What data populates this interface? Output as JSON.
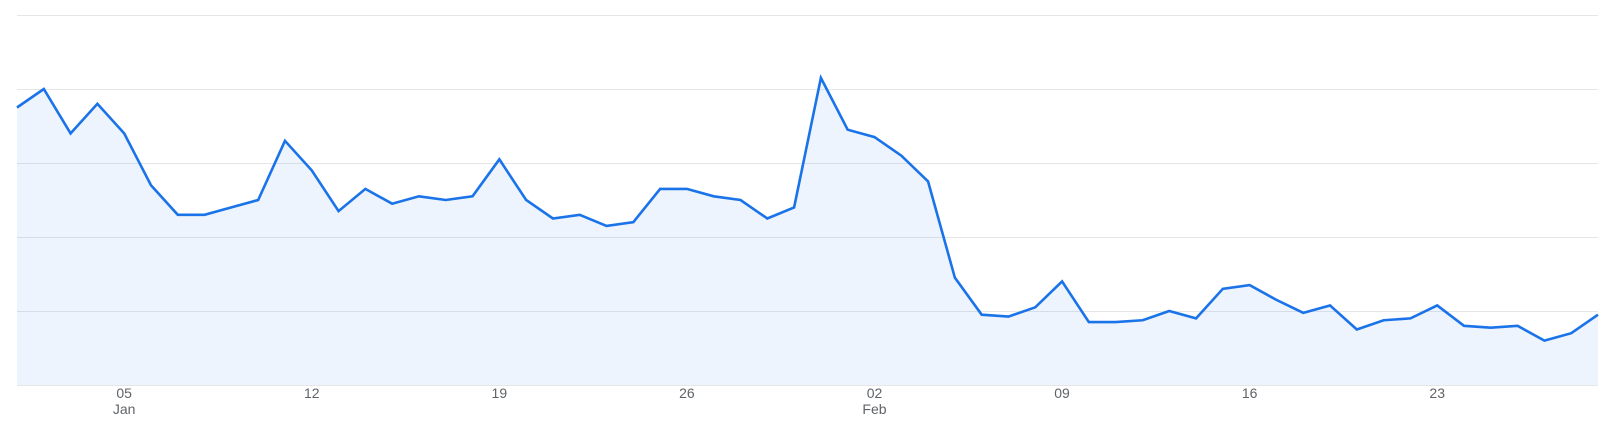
{
  "chart_data": {
    "type": "area",
    "title": "",
    "xlabel": "",
    "ylabel": "",
    "grid": true,
    "legend": "none",
    "line_color": "#1a73e8",
    "fill_color": "#1a73e8",
    "ylim": [
      0,
      100
    ],
    "x_range": [
      "2024-01-01",
      "2024-02-29"
    ],
    "x_ticks": [
      {
        "date": "2024-01-05",
        "label": "05",
        "month": "Jan"
      },
      {
        "date": "2024-01-12",
        "label": "12",
        "month": ""
      },
      {
        "date": "2024-01-19",
        "label": "19",
        "month": ""
      },
      {
        "date": "2024-01-26",
        "label": "26",
        "month": ""
      },
      {
        "date": "2024-02-02",
        "label": "02",
        "month": "Feb"
      },
      {
        "date": "2024-02-09",
        "label": "09",
        "month": ""
      },
      {
        "date": "2024-02-16",
        "label": "16",
        "month": ""
      },
      {
        "date": "2024-02-23",
        "label": "23",
        "month": ""
      }
    ],
    "series": [
      {
        "x": [
          "2024-01-01",
          "2024-01-02",
          "2024-01-03",
          "2024-01-04",
          "2024-01-05",
          "2024-01-06",
          "2024-01-07",
          "2024-01-08",
          "2024-01-09",
          "2024-01-10",
          "2024-01-11",
          "2024-01-12",
          "2024-01-13",
          "2024-01-14",
          "2024-01-15",
          "2024-01-16",
          "2024-01-17",
          "2024-01-18",
          "2024-01-19",
          "2024-01-20",
          "2024-01-21",
          "2024-01-22",
          "2024-01-23",
          "2024-01-24",
          "2024-01-25",
          "2024-01-26",
          "2024-01-27",
          "2024-01-28",
          "2024-01-29",
          "2024-01-30",
          "2024-01-31",
          "2024-02-01",
          "2024-02-02",
          "2024-02-03",
          "2024-02-04",
          "2024-02-05",
          "2024-02-06",
          "2024-02-07",
          "2024-02-08",
          "2024-02-09",
          "2024-02-10",
          "2024-02-11",
          "2024-02-12",
          "2024-02-13",
          "2024-02-14",
          "2024-02-15",
          "2024-02-16",
          "2024-02-17",
          "2024-02-18",
          "2024-02-19",
          "2024-02-20",
          "2024-02-21",
          "2024-02-22",
          "2024-02-23",
          "2024-02-24",
          "2024-02-25",
          "2024-02-26",
          "2024-02-27",
          "2024-02-28",
          "2024-02-29"
        ],
        "values": [
          75,
          80,
          68,
          76,
          68,
          54,
          46,
          46,
          48,
          50,
          66,
          58,
          47,
          53,
          49,
          51,
          50,
          51,
          61,
          50,
          45,
          46,
          43,
          44,
          53,
          53,
          51,
          50,
          45,
          48,
          83,
          69,
          67,
          62,
          55,
          29,
          19,
          18.5,
          21,
          28,
          17,
          17,
          17.5,
          20,
          18,
          26,
          27,
          23,
          19.5,
          21.5,
          15,
          17.5,
          18,
          21.5,
          16,
          15.5,
          16,
          12,
          14,
          19
        ]
      }
    ]
  }
}
